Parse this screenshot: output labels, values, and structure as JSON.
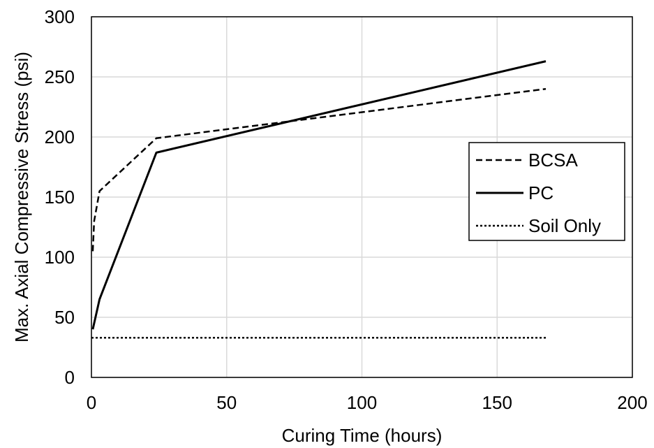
{
  "chart_data": {
    "type": "line",
    "title": "",
    "xlabel": "Curing Time (hours)",
    "ylabel": "Max. Axial Compressive Stress (psi)",
    "xlim": [
      0,
      200
    ],
    "ylim": [
      0,
      300
    ],
    "xticks": [
      0,
      50,
      100,
      150,
      200
    ],
    "yticks": [
      0,
      50,
      100,
      150,
      200,
      250,
      300
    ],
    "grid": true,
    "legend_position": "right",
    "series": [
      {
        "name": "BCSA",
        "style": "dashed",
        "color": "#000000",
        "x": [
          0.5,
          1,
          3,
          24,
          168
        ],
        "y": [
          105,
          130,
          155,
          199,
          240
        ]
      },
      {
        "name": "PC",
        "style": "solid",
        "color": "#000000",
        "x": [
          0.5,
          3,
          24,
          168
        ],
        "y": [
          40,
          65,
          187,
          263
        ]
      },
      {
        "name": "Soil Only",
        "style": "dotted",
        "color": "#000000",
        "x": [
          0,
          168
        ],
        "y": [
          33,
          33
        ]
      }
    ]
  }
}
